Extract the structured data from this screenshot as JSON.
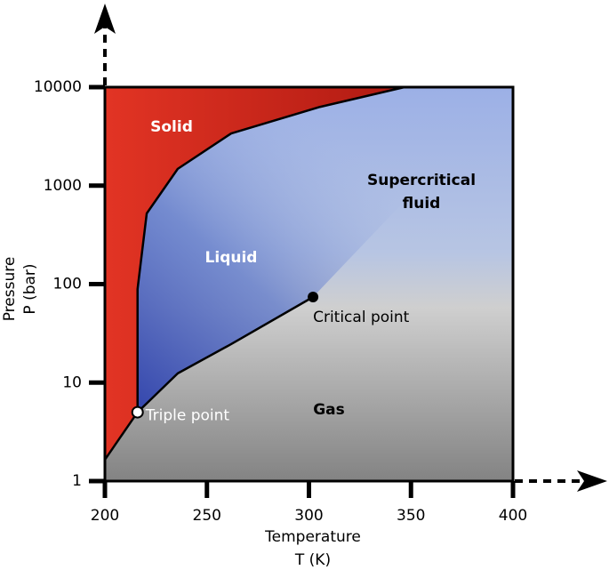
{
  "chart_data": {
    "type": "phase-diagram",
    "x_label": [
      "Temperature",
      "T (K)"
    ],
    "y_label": [
      "Pressure",
      "P (bar)"
    ],
    "xlim": [
      200,
      400
    ],
    "xticks": [
      200,
      250,
      300,
      350,
      400
    ],
    "ylim": [
      1,
      10000
    ],
    "yticks": [
      1,
      10,
      100,
      1000,
      10000
    ],
    "yscale": "log",
    "line_color": "#000000",
    "sublimation": {
      "x": [
        200,
        216
      ],
      "y": [
        1.65,
        5
      ]
    },
    "melting": {
      "x": [
        216,
        216,
        216,
        220.5,
        235.7,
        261.9,
        305.4,
        346.8
      ],
      "y": [
        5,
        30,
        89,
        522,
        1480,
        3390,
        6300,
        10000
      ]
    },
    "vaporization": {
      "x": [
        216,
        235.7,
        261.9,
        302
      ],
      "y": [
        5,
        12.4,
        24.6,
        74
      ]
    },
    "triple_point": {
      "label": "Triple point",
      "x": 216,
      "y": 5
    },
    "critical_point": {
      "label": "Critical point",
      "x": 302,
      "y": 74
    },
    "regions": {
      "solid": [
        "Solid"
      ],
      "liquid": [
        "Liquid"
      ],
      "supercritical": [
        "Supercritical",
        "fluid"
      ],
      "gas": [
        "Gas"
      ]
    }
  }
}
